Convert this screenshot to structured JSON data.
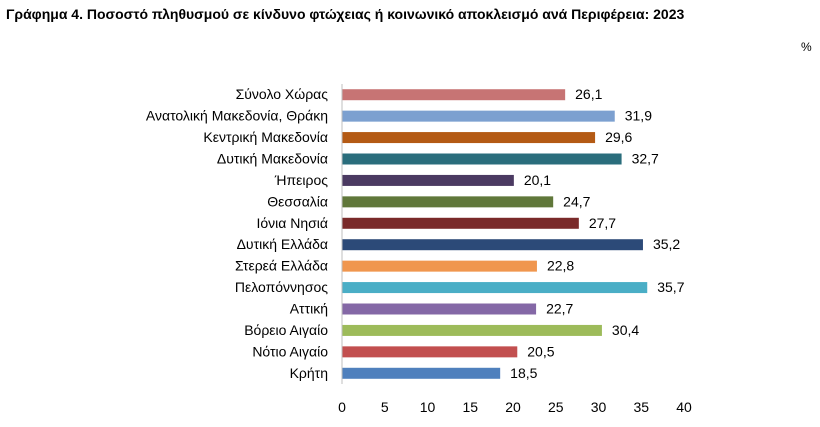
{
  "chart_data": {
    "type": "bar",
    "orientation": "horizontal",
    "title": "Γράφημα 4. Ποσοστό πληθυσμού σε κίνδυνο φτώχειας ή κοινωνικό αποκλεισμό  ανά Περιφέρεια: 2023",
    "unit": "%",
    "categories": [
      "Σύνολο Χώρας",
      "Ανατολική Μακεδονία, Θράκη",
      "Κεντρική Μακεδονία",
      "Δυτική Μακεδονία",
      "Ήπειρος",
      "Θεσσαλία",
      "Ιόνια Νησιά",
      "Δυτική Ελλάδα",
      "Στερεά Ελλάδα",
      "Πελοπόννησος",
      "Αττική",
      "Βόρειο Αιγαίο",
      "Νότιο Αιγαίο",
      "Κρήτη"
    ],
    "values": [
      26.1,
      31.9,
      29.6,
      32.7,
      20.1,
      24.7,
      27.7,
      35.2,
      22.8,
      35.7,
      22.7,
      30.4,
      20.5,
      18.5
    ],
    "value_labels": [
      "26,1",
      "31,9",
      "29,6",
      "32,7",
      "20,1",
      "24,7",
      "27,7",
      "35,2",
      "22,8",
      "35,7",
      "22,7",
      "30,4",
      "20,5",
      "18,5"
    ],
    "bar_colors": [
      "#c77474",
      "#7ca0d0",
      "#b45a14",
      "#2a6d7c",
      "#4b3a62",
      "#60773a",
      "#7a2a2a",
      "#2c4a78",
      "#f0964e",
      "#4aaec6",
      "#8468a6",
      "#9dbb5a",
      "#c24f4f",
      "#4f80bd"
    ],
    "xlim": [
      0,
      40
    ],
    "xticks": [
      0,
      5,
      10,
      15,
      20,
      25,
      30,
      35,
      40
    ],
    "grid": false,
    "legend": "none"
  }
}
